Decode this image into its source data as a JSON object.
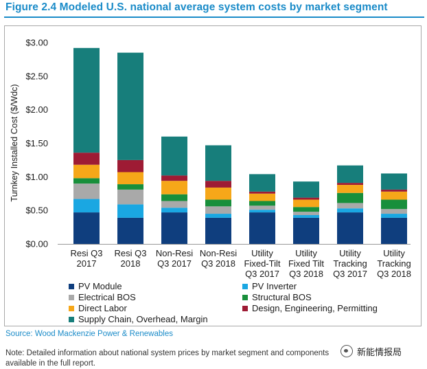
{
  "figure": {
    "title": "Figure 2.4 Modeled U.S. national average system costs by market segment",
    "source": "Source: Wood Mackenzie Power & Renewables",
    "note": "Note: Detailed information about national system prices by market segment and components available in the full report.",
    "watermark": "新能情报局"
  },
  "chart_data": {
    "type": "bar",
    "stacked": true,
    "title": "",
    "xlabel": "",
    "ylabel": "Turnkey Installed Cost ($/Wdc)",
    "ylim": [
      0,
      3.0
    ],
    "yticks": [
      "$0.00",
      "$0.50",
      "$1.00",
      "$1.50",
      "$2.00",
      "$2.50",
      "$3.00"
    ],
    "grid": false,
    "legend_position": "bottom",
    "categories": [
      [
        "Resi Q3",
        "2017"
      ],
      [
        "Resi Q3",
        "2018"
      ],
      [
        "Non-Resi",
        "Q3 2017"
      ],
      [
        "Non-Resi",
        "Q3 2018"
      ],
      [
        "Utility",
        "Fixed-Tilt",
        "Q3 2017"
      ],
      [
        "Utility",
        "Fixed Tilt",
        "Q3 2018"
      ],
      [
        "Utility",
        "Tracking",
        "Q3 2017"
      ],
      [
        "Utility",
        "Tracking",
        "Q3 2018"
      ]
    ],
    "series": [
      {
        "name": "PV Module",
        "color": "#0f3e7e",
        "values": [
          0.47,
          0.39,
          0.47,
          0.39,
          0.47,
          0.39,
          0.47,
          0.39
        ]
      },
      {
        "name": "PV Inverter",
        "color": "#1aa7e2",
        "values": [
          0.2,
          0.2,
          0.07,
          0.06,
          0.04,
          0.04,
          0.06,
          0.06
        ]
      },
      {
        "name": "Electrical BOS",
        "color": "#a9a9a9",
        "values": [
          0.23,
          0.22,
          0.1,
          0.11,
          0.06,
          0.05,
          0.08,
          0.07
        ]
      },
      {
        "name": "Structural BOS",
        "color": "#188f3b",
        "values": [
          0.08,
          0.08,
          0.1,
          0.1,
          0.07,
          0.07,
          0.15,
          0.14
        ]
      },
      {
        "name": "Direct Labor",
        "color": "#f6a719",
        "values": [
          0.2,
          0.18,
          0.2,
          0.18,
          0.11,
          0.11,
          0.12,
          0.12
        ]
      },
      {
        "name": "Design, Engineering, Permitting",
        "color": "#9e1b34",
        "values": [
          0.18,
          0.18,
          0.08,
          0.1,
          0.03,
          0.03,
          0.03,
          0.03
        ]
      },
      {
        "name": "Supply Chain, Overhead, Margin",
        "color": "#177e7b",
        "values": [
          1.56,
          1.6,
          0.58,
          0.53,
          0.26,
          0.24,
          0.26,
          0.24
        ]
      }
    ]
  }
}
